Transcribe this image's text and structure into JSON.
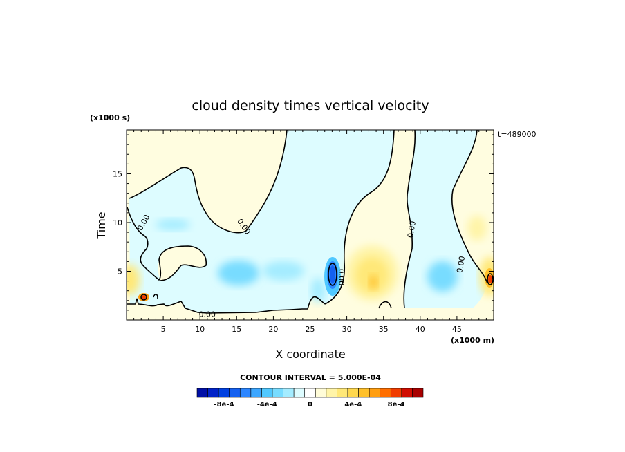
{
  "chart_data": {
    "type": "heatmap",
    "title": "cloud density times vertical velocity",
    "xlabel": "X coordinate",
    "ylabel": "Time",
    "x_unit": "(x1000 m)",
    "y_unit": "(x1000 s)",
    "time_stamp": "t=489000",
    "xlim": [
      0,
      50
    ],
    "ylim": [
      0,
      19.5
    ],
    "x_ticks": [
      5,
      10,
      15,
      20,
      25,
      30,
      35,
      40,
      45
    ],
    "y_ticks": [
      5,
      10,
      15
    ],
    "contour_interval_text": "CONTOUR INTERVAL = 5.000E-04",
    "contour_labels": [
      {
        "text": "0.00",
        "x": 2.3,
        "y": 10.0,
        "angle": 60
      },
      {
        "text": "0.00",
        "x": 16.0,
        "y": 9.6,
        "angle": -55
      },
      {
        "text": "0.00",
        "x": 11.0,
        "y": 0.6,
        "angle": 0
      },
      {
        "text": "0.00",
        "x": 29.3,
        "y": 4.4,
        "angle": -90
      },
      {
        "text": "0.00",
        "x": 38.8,
        "y": 9.3,
        "angle": 80
      },
      {
        "text": "0.00",
        "x": 45.5,
        "y": 5.7,
        "angle": 80
      }
    ],
    "colorbar": {
      "levels": [
        "-1e-3",
        "-9e-4",
        "-8e-4",
        "-7e-4",
        "-6e-4",
        "-5e-4",
        "-4e-4",
        "-3e-4",
        "-2e-4",
        "-1e-4",
        "0",
        "1e-4",
        "2e-4",
        "3e-4",
        "4e-4",
        "5e-4",
        "6e-4",
        "7e-4",
        "8e-4",
        "9e-4",
        "1e-3"
      ],
      "colors": [
        "#000fa6",
        "#0022c8",
        "#0040e0",
        "#1460f0",
        "#2c86ff",
        "#3ca6ff",
        "#50c8ff",
        "#78dcff",
        "#a4ecff",
        "#ddfcff",
        "#ffffff",
        "#fffcd8",
        "#fff4a8",
        "#ffe878",
        "#ffd84e",
        "#ffc02a",
        "#ff9e10",
        "#ff6e00",
        "#f03c00",
        "#d00c00",
        "#a80000"
      ],
      "tick_labels": [
        "-8e-4",
        "-4e-4",
        "0",
        "4e-4",
        "8e-4"
      ]
    }
  }
}
